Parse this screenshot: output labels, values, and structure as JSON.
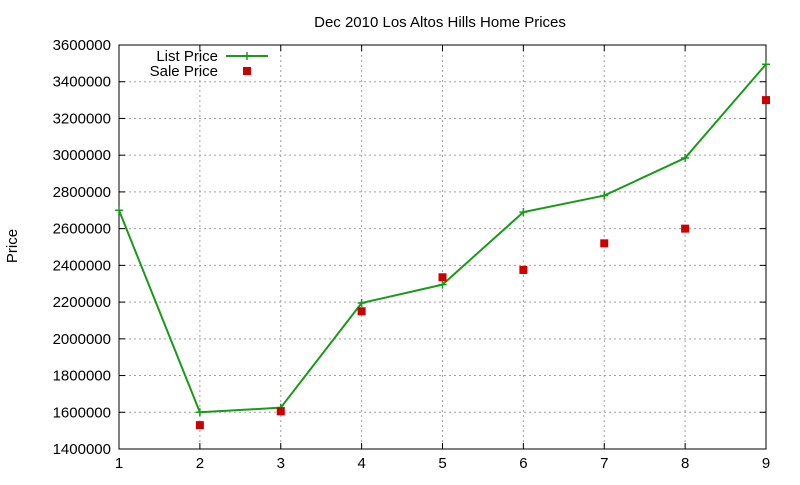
{
  "chart_data": {
    "type": "line",
    "title": "Dec 2010 Los Altos Hills Home Prices",
    "xlabel": "",
    "ylabel": "Price",
    "x": [
      1,
      2,
      3,
      4,
      5,
      6,
      7,
      8,
      9
    ],
    "xlim": [
      1,
      9
    ],
    "ylim": [
      1400000,
      3600000
    ],
    "x_ticks": [
      1,
      2,
      3,
      4,
      5,
      6,
      7,
      8,
      9
    ],
    "y_ticks": [
      1400000,
      1600000,
      1800000,
      2000000,
      2200000,
      2400000,
      2600000,
      2800000,
      3000000,
      3200000,
      3400000,
      3600000
    ],
    "grid": true,
    "legend_position": "top-left",
    "series": [
      {
        "name": "List Price",
        "style": "line+cross",
        "color": "#1a9a1a",
        "x": [
          1,
          2,
          3,
          4,
          5,
          6,
          7,
          8,
          9
        ],
        "values": [
          2700000,
          1600000,
          1625000,
          2195000,
          2295000,
          2690000,
          2780000,
          2985000,
          3495000
        ]
      },
      {
        "name": "Sale Price",
        "style": "square-points",
        "color": "#cc0000",
        "x": [
          2,
          3,
          4,
          5,
          6,
          7,
          8,
          9
        ],
        "values": [
          1530000,
          1605000,
          2150000,
          2335000,
          2375000,
          2520000,
          2600000,
          3300000
        ]
      }
    ]
  }
}
